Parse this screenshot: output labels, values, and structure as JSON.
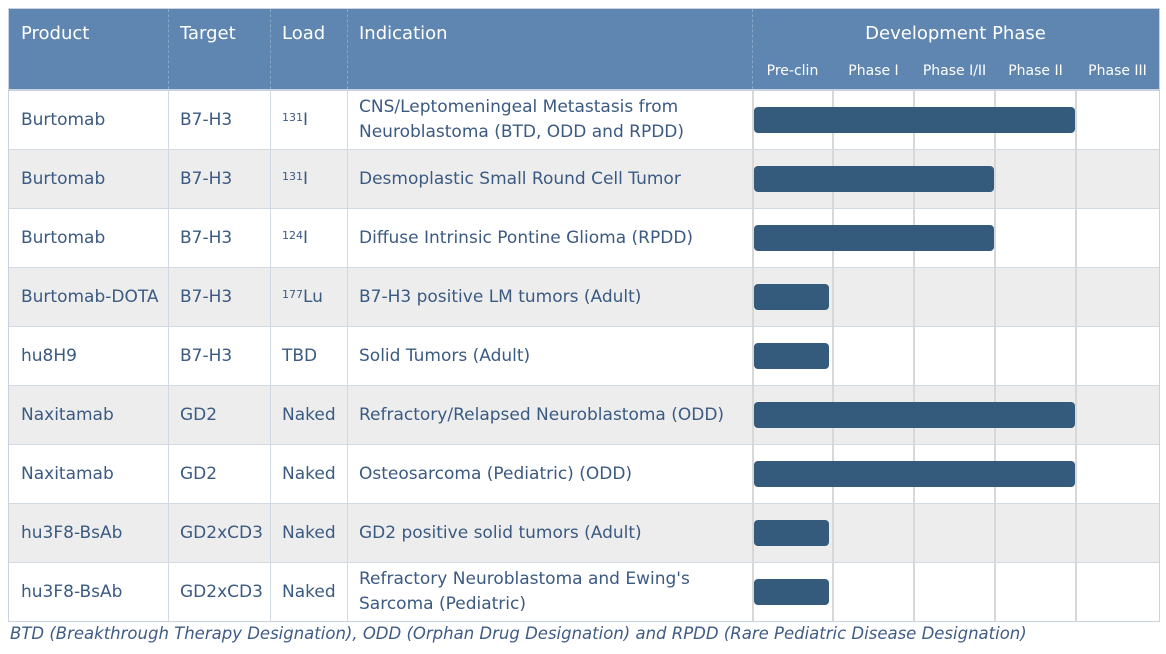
{
  "header": {
    "product": "Product",
    "target": "Target",
    "load": "Load",
    "indication": "Indication",
    "development_phase": "Development Phase",
    "phases": [
      "Pre-clin",
      "Phase I",
      "Phase I/II",
      "Phase II",
      "Phase III"
    ]
  },
  "rows": [
    {
      "product": "Burtomab",
      "target": "B7-H3",
      "load_sup": "131",
      "load": "I",
      "indication": "CNS/Leptomeningeal Metastasis from Neuroblastoma (BTD, ODD and RPDD)",
      "phase_reached": "Phase II",
      "phase_progress": 1.0
    },
    {
      "product": "Burtomab",
      "target": "B7-H3",
      "load_sup": "131",
      "load": "I",
      "indication": "Desmoplastic Small Round Cell Tumor",
      "phase_reached": "Phase I/II",
      "phase_progress": 1.0
    },
    {
      "product": "Burtomab",
      "target": "B7-H3",
      "load_sup": "124",
      "load": "I",
      "indication": "Diffuse Intrinsic Pontine Glioma (RPDD)",
      "phase_reached": "Phase I/II",
      "phase_progress": 1.0
    },
    {
      "product": "Burtomab-DOTA",
      "target": "B7-H3",
      "load_sup": "177",
      "load": "Lu",
      "indication": "B7-H3 positive LM tumors (Adult)",
      "phase_reached": "Pre-clin",
      "phase_progress": 1.0
    },
    {
      "product": "hu8H9",
      "target": "B7-H3",
      "load_sup": "",
      "load": "TBD",
      "indication": "Solid Tumors (Adult)",
      "phase_reached": "Pre-clin",
      "phase_progress": 1.0
    },
    {
      "product": "Naxitamab",
      "target": "GD2",
      "load_sup": "",
      "load": "Naked",
      "indication": "Refractory/Relapsed Neuroblastoma (ODD)",
      "phase_reached": "Phase II",
      "phase_progress": 1.0
    },
    {
      "product": "Naxitamab",
      "target": "GD2",
      "load_sup": "",
      "load": "Naked",
      "indication": "Osteosarcoma (Pediatric) (ODD)",
      "phase_reached": "Phase II",
      "phase_progress": 1.0
    },
    {
      "product": "hu3F8-BsAb",
      "target": "GD2xCD3",
      "load_sup": "",
      "load": "Naked",
      "indication": "GD2 positive solid tumors (Adult)",
      "phase_reached": "Pre-clin",
      "phase_progress": 1.0
    },
    {
      "product": "hu3F8-BsAb",
      "target": "GD2xCD3",
      "load_sup": "",
      "load": "Naked",
      "indication": "Refractory Neuroblastoma and Ewing's Sarcoma (Pediatric)",
      "phase_reached": "Pre-clin",
      "phase_progress": 1.0
    }
  ],
  "footnote": "BTD (Breakthrough Therapy Designation), ODD (Orphan Drug Designation) and RPDD (Rare Pediatric Disease Designation)",
  "colors": {
    "header_bg": "#5f86b1",
    "bar": "#345a7c",
    "text": "#3b5a82",
    "alt_row": "#ededed"
  }
}
